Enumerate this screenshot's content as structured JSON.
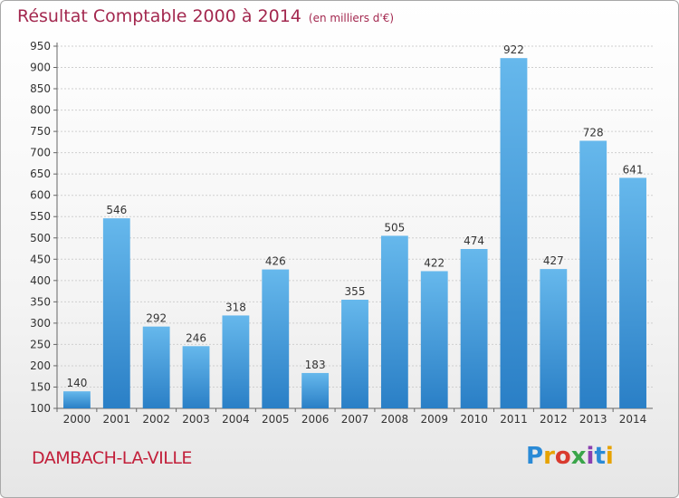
{
  "title": "Résultat Comptable 2000 à 2014",
  "subtitle": "(en milliers d'€)",
  "place": "DAMBACH-LA-VILLE",
  "logo": [
    "P",
    "r",
    "o",
    "x",
    "i",
    "t",
    "i"
  ],
  "colors": {
    "bar_top": "#66b8ec",
    "bar_bottom": "#2a7fc6",
    "title": "#a3284f",
    "place": "#c21f3a"
  },
  "chart_data": {
    "type": "bar",
    "categories": [
      "2000",
      "2001",
      "2002",
      "2003",
      "2004",
      "2005",
      "2006",
      "2007",
      "2008",
      "2009",
      "2010",
      "2011",
      "2012",
      "2013",
      "2014"
    ],
    "values": [
      140,
      546,
      292,
      246,
      318,
      426,
      183,
      355,
      505,
      422,
      474,
      922,
      427,
      728,
      641
    ],
    "yticks": [
      100,
      150,
      200,
      250,
      300,
      350,
      400,
      450,
      500,
      550,
      600,
      650,
      700,
      750,
      800,
      850,
      900,
      950
    ],
    "ylim": [
      100,
      950
    ],
    "grid": true,
    "title": "Résultat Comptable 2000 à 2014",
    "xlabel": "",
    "ylabel": ""
  }
}
